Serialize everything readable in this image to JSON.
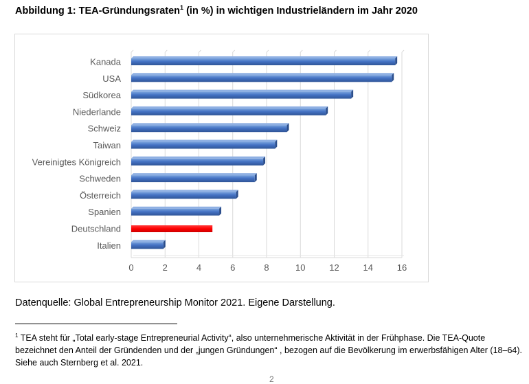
{
  "figure": {
    "title_main": "Abbildung 1: TEA-Gründungsraten",
    "title_sup": "1",
    "title_rest": " (in %) in wichtigen Industrieländern im Jahr 2020"
  },
  "chart_data": {
    "type": "bar",
    "orientation": "horizontal",
    "categories": [
      "Kanada",
      "USA",
      "Südkorea",
      "Niederlande",
      "Schweiz",
      "Taiwan",
      "Vereinigtes Königreich",
      "Schweden",
      "Österreich",
      "Spanien",
      "Deutschland",
      "Italien"
    ],
    "values": [
      15.6,
      15.4,
      13.0,
      11.5,
      9.2,
      8.5,
      7.8,
      7.3,
      6.2,
      5.2,
      4.8,
      1.9
    ],
    "xlim": [
      0,
      16
    ],
    "xticks": [
      0,
      2,
      4,
      6,
      8,
      10,
      12,
      14,
      16
    ],
    "grid": "vertical",
    "bar_color": "#4472c4",
    "highlight": {
      "category": "Deutschland",
      "color": "#ff0000"
    }
  },
  "source": {
    "text": "Datenquelle: Global Entrepreneurship Monitor 2021. Eigene Darstellung."
  },
  "footnote": {
    "marker": "1",
    "text": " TEA steht für „Total early-stage Entrepreneurial Activity“, also unternehmerische Aktivität in der Frühphase. Die TEA-Quote bezeichnet den Anteil der Gründenden und der „jungen Gründungen“ , bezogen auf die Bevölkerung im erwerbsfähigen Alter (18–64). Siehe auch Sternberg et al. 2021."
  },
  "page_number": "2"
}
